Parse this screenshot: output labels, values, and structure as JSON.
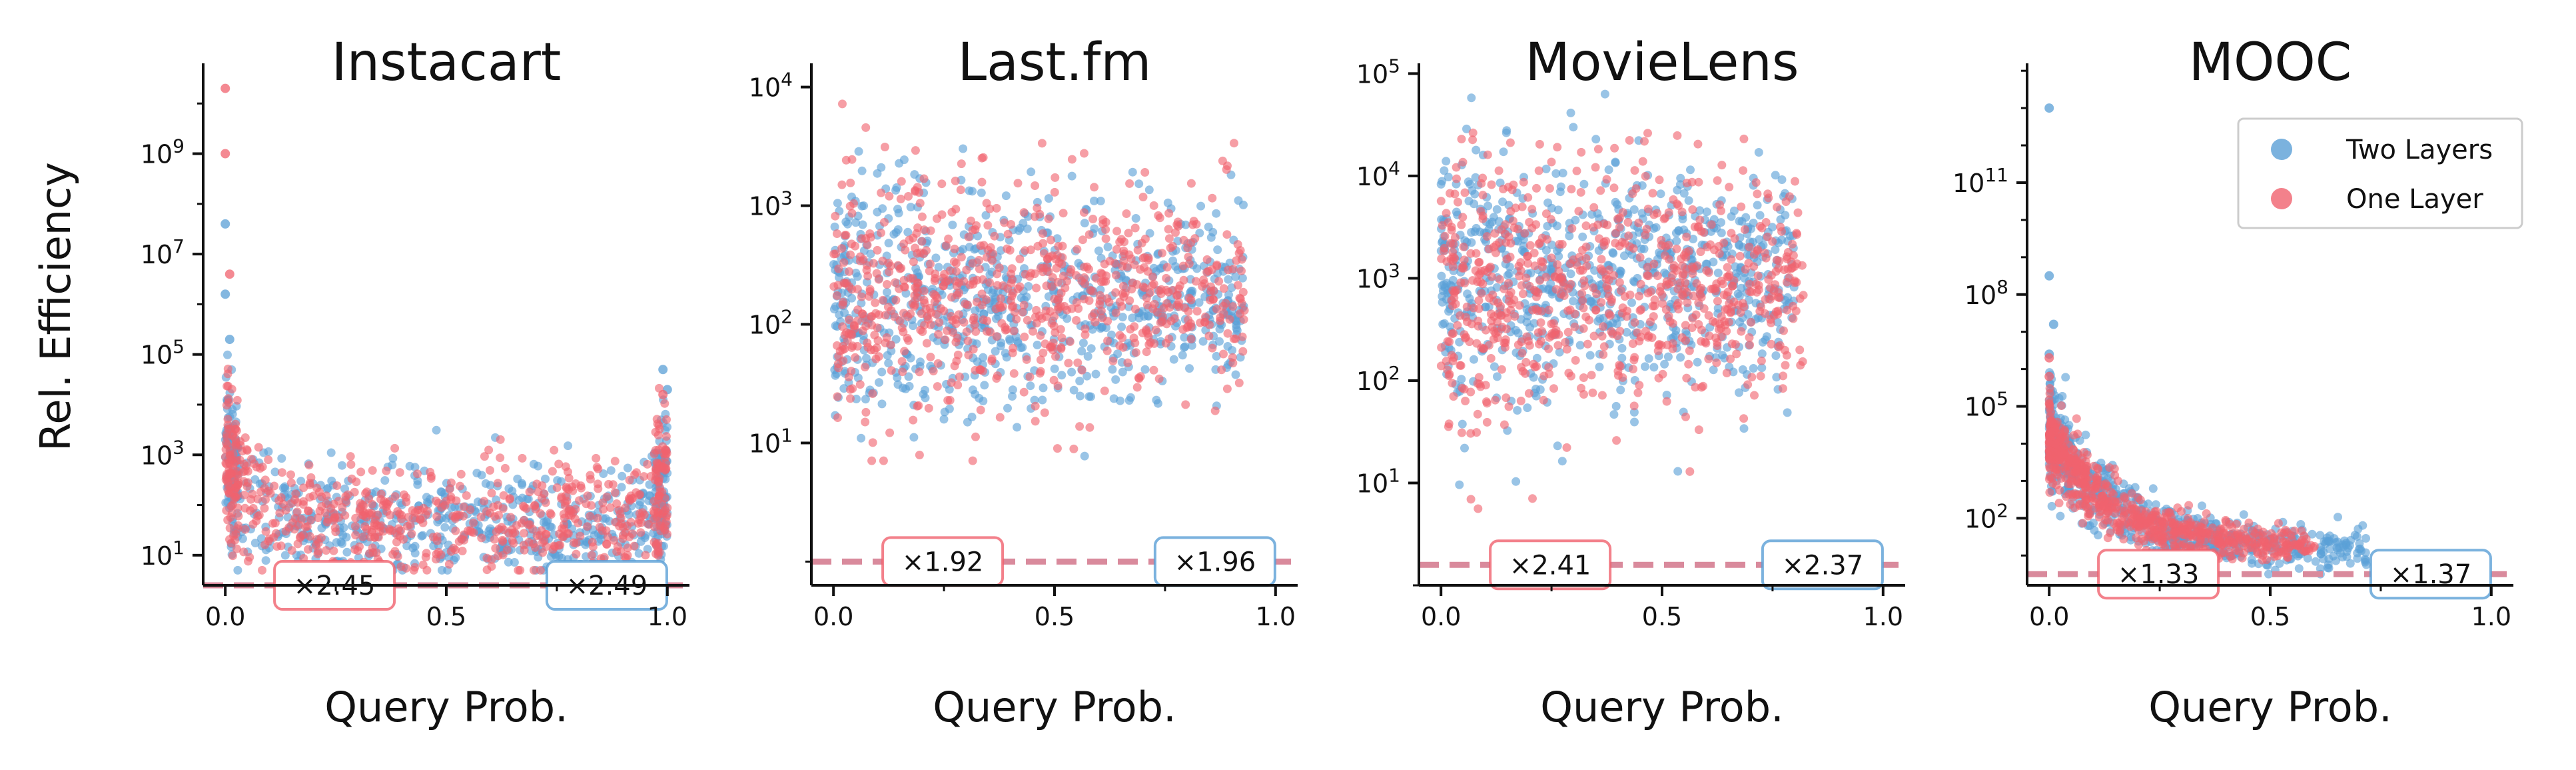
{
  "figure": {
    "ylabel": "Rel. Efficiency",
    "legend": {
      "position": "top-right of last panel",
      "entries": [
        {
          "label": "Two Layers",
          "color": "#5a9fd6"
        },
        {
          "label": "One Layer",
          "color": "#f0626e"
        }
      ]
    },
    "baseline_color": "#d98a9c"
  },
  "chart_data": [
    {
      "type": "scatter",
      "title": "Instacart",
      "xlabel": "Query Prob.",
      "ylabel": "Rel. Efficiency",
      "y_scale": "log",
      "xlim": [
        -0.05,
        1.05
      ],
      "ylim_exp": [
        0.4,
        10.8
      ],
      "x_ticks": [
        0.0,
        0.5,
        1.0
      ],
      "x_tick_labels": [
        "0.0",
        "0.5",
        "1.0"
      ],
      "y_ticks": [
        1,
        3,
        5,
        7,
        9
      ],
      "y_tick_labels": [
        {
          "base": "10",
          "exp": "1"
        },
        {
          "base": "10",
          "exp": "3"
        },
        {
          "base": "10",
          "exp": "5"
        },
        {
          "base": "10",
          "exp": "7"
        },
        {
          "base": "10",
          "exp": "9"
        }
      ],
      "baseline_exp": 0.4,
      "ratio_labels": {
        "one_layer": "×2.45",
        "two_layers": "×2.49"
      },
      "series": [
        {
          "name": "Two Layers",
          "color": "#5a9fd6",
          "shape": "u",
          "n": 700,
          "xmin": 0.0,
          "xmax": 1.0,
          "center": 1.6,
          "spread": 0.55,
          "edge_lift": 1.6,
          "edge_width": 0.04,
          "range_lo": 0.7,
          "range_hi": 9.6,
          "outliers": [
            [
              0.0,
              7.6
            ],
            [
              0.0,
              6.2
            ],
            [
              0.01,
              5.3
            ],
            [
              0.99,
              4.7
            ],
            [
              1.0,
              4.3
            ]
          ]
        },
        {
          "name": "One Layer",
          "color": "#f0626e",
          "shape": "u",
          "n": 700,
          "xmin": 0.0,
          "xmax": 1.0,
          "center": 1.75,
          "spread": 0.55,
          "edge_lift": 1.5,
          "edge_width": 0.04,
          "range_lo": 0.7,
          "range_hi": 10.3,
          "outliers": [
            [
              0.0,
              10.3
            ],
            [
              0.0,
              9.0
            ],
            [
              0.01,
              6.6
            ],
            [
              0.99,
              4.2
            ]
          ]
        }
      ]
    },
    {
      "type": "scatter",
      "title": "Last.fm",
      "xlabel": "Query Prob.",
      "ylabel": "",
      "y_scale": "log",
      "xlim": [
        -0.05,
        1.05
      ],
      "ylim_exp": [
        -0.2,
        4.2
      ],
      "x_ticks": [
        0.0,
        0.5,
        1.0
      ],
      "x_tick_labels": [
        "0.0",
        "0.5",
        "1.0"
      ],
      "y_ticks": [
        1,
        2,
        3,
        4
      ],
      "y_tick_labels": [
        {
          "base": "10",
          "exp": "1"
        },
        {
          "base": "10",
          "exp": "2"
        },
        {
          "base": "10",
          "exp": "3"
        },
        {
          "base": "10",
          "exp": "4"
        }
      ],
      "baseline_exp": 0.0,
      "ratio_labels": {
        "one_layer": "×1.92",
        "two_layers": "×1.96"
      },
      "series": [
        {
          "name": "Two Layers",
          "color": "#5a9fd6",
          "shape": "cloud",
          "n": 750,
          "xmin": 0.0,
          "xmax": 0.93,
          "center": 2.2,
          "spread": 0.55,
          "range_lo": 0.85,
          "range_hi": 3.9,
          "outliers": []
        },
        {
          "name": "One Layer",
          "color": "#f0626e",
          "shape": "cloud",
          "n": 750,
          "xmin": 0.0,
          "xmax": 0.93,
          "center": 2.25,
          "spread": 0.55,
          "range_lo": 0.85,
          "range_hi": 4.0,
          "outliers": []
        }
      ]
    },
    {
      "type": "scatter",
      "title": "MovieLens",
      "xlabel": "Query Prob.",
      "ylabel": "",
      "y_scale": "log",
      "xlim": [
        -0.05,
        1.05
      ],
      "ylim_exp": [
        0.0,
        5.1
      ],
      "x_ticks": [
        0.0,
        0.5,
        1.0
      ],
      "x_tick_labels": [
        "0.0",
        "0.5",
        "1.0"
      ],
      "y_ticks": [
        1,
        2,
        3,
        4,
        5
      ],
      "y_tick_labels": [
        {
          "base": "10",
          "exp": "1"
        },
        {
          "base": "10",
          "exp": "2"
        },
        {
          "base": "10",
          "exp": "3"
        },
        {
          "base": "10",
          "exp": "4"
        },
        {
          "base": "10",
          "exp": "5"
        }
      ],
      "baseline_exp": 0.2,
      "ratio_labels": {
        "one_layer": "×2.41",
        "two_layers": "×2.37"
      },
      "series": [
        {
          "name": "Two Layers",
          "color": "#5a9fd6",
          "shape": "cloud",
          "n": 750,
          "xmin": 0.0,
          "xmax": 0.8,
          "center": 3.0,
          "spread": 0.7,
          "range_lo": 0.7,
          "range_hi": 4.8,
          "outliers": []
        },
        {
          "name": "One Layer",
          "color": "#f0626e",
          "shape": "cloud",
          "n": 750,
          "xmin": 0.0,
          "xmax": 0.82,
          "center": 2.9,
          "spread": 0.7,
          "range_lo": 0.7,
          "range_hi": 4.9,
          "outliers": []
        }
      ]
    },
    {
      "type": "scatter",
      "title": "MOOC",
      "xlabel": "Query Prob.",
      "ylabel": "",
      "y_scale": "log",
      "xlim": [
        -0.05,
        1.05
      ],
      "ylim_exp": [
        0.2,
        14.2
      ],
      "x_ticks": [
        0.0,
        0.5,
        1.0
      ],
      "x_tick_labels": [
        "0.0",
        "0.5",
        "1.0"
      ],
      "y_ticks": [
        2,
        5,
        8,
        11
      ],
      "y_tick_labels": [
        {
          "base": "10",
          "exp": "2"
        },
        {
          "base": "10",
          "exp": "5"
        },
        {
          "base": "10",
          "exp": "8"
        },
        {
          "base": "10",
          "exp": "11"
        }
      ],
      "baseline_exp": 0.5,
      "ratio_labels": {
        "one_layer": "×1.33",
        "two_layers": "×1.37"
      },
      "series": [
        {
          "name": "Two Layers",
          "color": "#5a9fd6",
          "shape": "decay",
          "n": 650,
          "xmin": 0.0,
          "xmax": 0.72,
          "center": 1.2,
          "spread": 0.7,
          "decay_amp": 3.2,
          "decay_rate": 7.0,
          "range_lo": 0.5,
          "range_hi": 13.0,
          "outliers": [
            [
              0.0,
              13.0
            ],
            [
              0.0,
              8.5
            ],
            [
              0.01,
              7.2
            ],
            [
              0.0,
              6.4
            ]
          ]
        },
        {
          "name": "One Layer",
          "color": "#f0626e",
          "shape": "decay",
          "n": 650,
          "xmin": 0.0,
          "xmax": 0.6,
          "center": 1.2,
          "spread": 0.6,
          "decay_amp": 3.0,
          "decay_rate": 7.0,
          "range_lo": 0.5,
          "range_hi": 6.5,
          "outliers": [
            [
              0.0,
              6.3
            ],
            [
              0.0,
              5.8
            ]
          ]
        }
      ]
    }
  ]
}
